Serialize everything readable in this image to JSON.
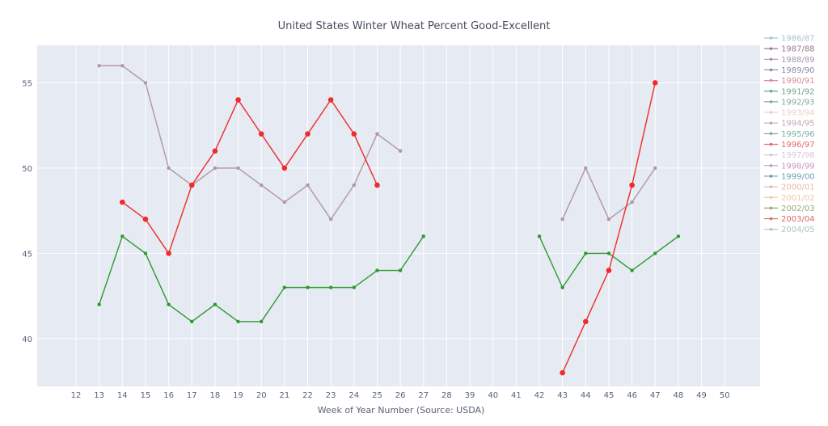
{
  "chart_data": {
    "type": "line",
    "title": "United States Winter Wheat Percent Good-Excellent",
    "xlabel": "Week of Year Number     (Source: USDA)",
    "ylabel": "",
    "x_categories": [
      12,
      13,
      14,
      15,
      16,
      17,
      18,
      19,
      20,
      21,
      22,
      23,
      24,
      25,
      26,
      27,
      28,
      39,
      40,
      41,
      42,
      43,
      44,
      45,
      46,
      47,
      48,
      49,
      50
    ],
    "y_ticks": [
      40,
      45,
      50,
      55
    ],
    "ylim": [
      37.2,
      57.2
    ],
    "grid": true,
    "legend_position": "right",
    "colors": {
      "plot_bg": "#e5eaf3",
      "grid": "#ffffff",
      "red": "#ef2b2b",
      "green": "#2f9a2f",
      "mauve": "#b496a0"
    },
    "legend": [
      {
        "name": "1986/87",
        "color": "#a9c2d3"
      },
      {
        "name": "1987/88",
        "color": "#9e7a8f"
      },
      {
        "name": "1988/89",
        "color": "#a895b4"
      },
      {
        "name": "1989/90",
        "color": "#8f8aa8"
      },
      {
        "name": "1990/91",
        "color": "#d98a9a"
      },
      {
        "name": "1991/92",
        "color": "#6aa58a"
      },
      {
        "name": "1992/93",
        "color": "#7ea89a"
      },
      {
        "name": "1993/94",
        "color": "#e8d2c4"
      },
      {
        "name": "1994/95",
        "color": "#c9a3ae"
      },
      {
        "name": "1995/96",
        "color": "#78b0a0"
      },
      {
        "name": "1996/97",
        "color": "#e06a6a"
      },
      {
        "name": "1997/98",
        "color": "#d8c8d8"
      },
      {
        "name": "1998/99",
        "color": "#c895c0"
      },
      {
        "name": "1999/00",
        "color": "#6aa0b0"
      },
      {
        "name": "2000/01",
        "color": "#e8b8a8"
      },
      {
        "name": "2001/02",
        "color": "#f0c8a8"
      },
      {
        "name": "2002/03",
        "color": "#9aa870"
      },
      {
        "name": "2003/04",
        "color": "#d86a6a"
      },
      {
        "name": "2004/05",
        "color": "#a8c8c8"
      }
    ],
    "series": [
      {
        "color": "#b496a0",
        "marker_size": 2.2,
        "points": [
          [
            13,
            56
          ],
          [
            14,
            56
          ],
          [
            15,
            55
          ],
          [
            16,
            50
          ],
          [
            17,
            49
          ],
          [
            18,
            50
          ],
          [
            19,
            50
          ],
          [
            20,
            49
          ],
          [
            21,
            48
          ],
          [
            22,
            49
          ],
          [
            23,
            47
          ],
          [
            24,
            49
          ],
          [
            25,
            52
          ],
          [
            26,
            51
          ],
          [
            43,
            47
          ],
          [
            44,
            50
          ],
          [
            45,
            47
          ],
          [
            46,
            48
          ],
          [
            47,
            50
          ]
        ]
      },
      {
        "color": "#2f9a2f",
        "marker_size": 2.2,
        "points": [
          [
            13,
            42
          ],
          [
            14,
            46
          ],
          [
            15,
            45
          ],
          [
            16,
            42
          ],
          [
            17,
            41
          ],
          [
            18,
            42
          ],
          [
            19,
            41
          ],
          [
            20,
            41
          ],
          [
            21,
            43
          ],
          [
            22,
            43
          ],
          [
            23,
            43
          ],
          [
            24,
            43
          ],
          [
            25,
            44
          ],
          [
            26,
            44
          ],
          [
            27,
            46
          ],
          [
            42,
            46
          ],
          [
            43,
            43
          ],
          [
            44,
            45
          ],
          [
            45,
            45
          ],
          [
            46,
            44
          ],
          [
            47,
            45
          ],
          [
            48,
            46
          ]
        ]
      },
      {
        "color": "#ef2b2b",
        "marker_size": 3.3,
        "points": [
          [
            14,
            48
          ],
          [
            15,
            47
          ],
          [
            16,
            45
          ],
          [
            17,
            49
          ],
          [
            18,
            51
          ],
          [
            19,
            54
          ],
          [
            20,
            52
          ],
          [
            21,
            50
          ],
          [
            22,
            52
          ],
          [
            23,
            54
          ],
          [
            24,
            52
          ],
          [
            25,
            49
          ],
          [
            43,
            38
          ],
          [
            44,
            41
          ],
          [
            45,
            44
          ],
          [
            46,
            49
          ],
          [
            47,
            55
          ]
        ]
      }
    ]
  }
}
